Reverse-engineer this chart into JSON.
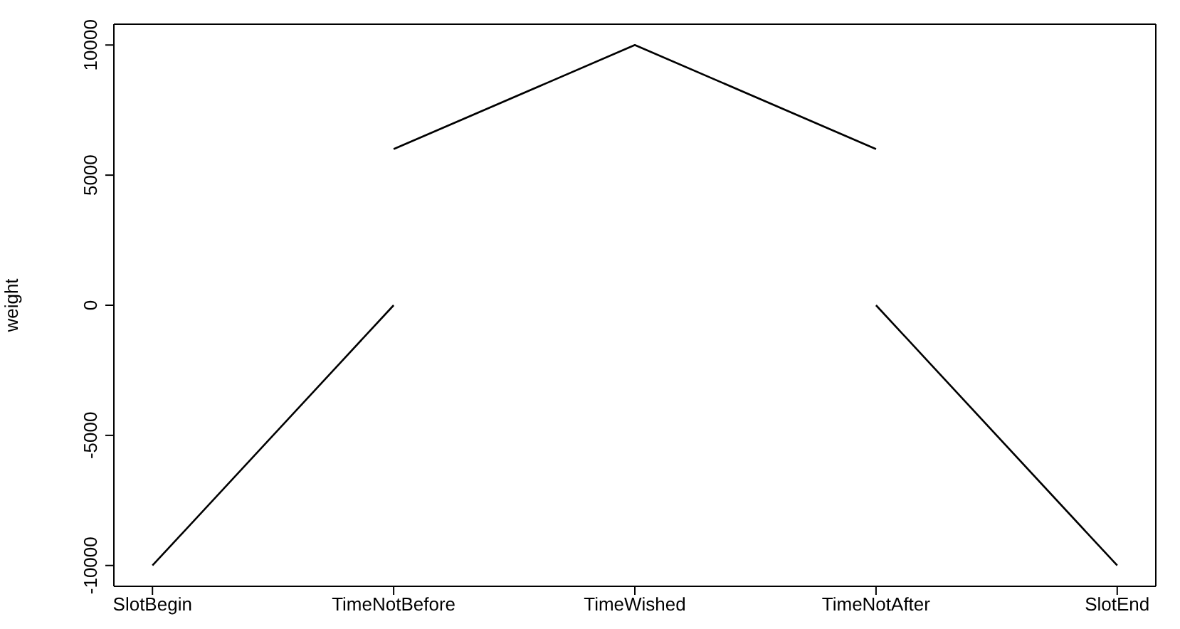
{
  "chart_data": {
    "type": "line",
    "ylabel": "weight",
    "categories": [
      "SlotBegin",
      "TimeNotBefore",
      "TimeWished",
      "TimeNotAfter",
      "SlotEnd"
    ],
    "series": [
      {
        "color": "#000000",
        "values": [
          -10000,
          0,
          null,
          null,
          null
        ]
      },
      {
        "color": "#000000",
        "values": [
          null,
          6000,
          10000,
          6000,
          null
        ]
      },
      {
        "color": "#000000",
        "values": [
          null,
          null,
          null,
          0,
          -10000
        ]
      }
    ],
    "ylim": [
      -10800,
      10800
    ],
    "yticks": [
      -10000,
      -5000,
      0,
      5000,
      10000
    ],
    "grid": false,
    "legend": false,
    "marker": "none",
    "line_style": "solid"
  }
}
